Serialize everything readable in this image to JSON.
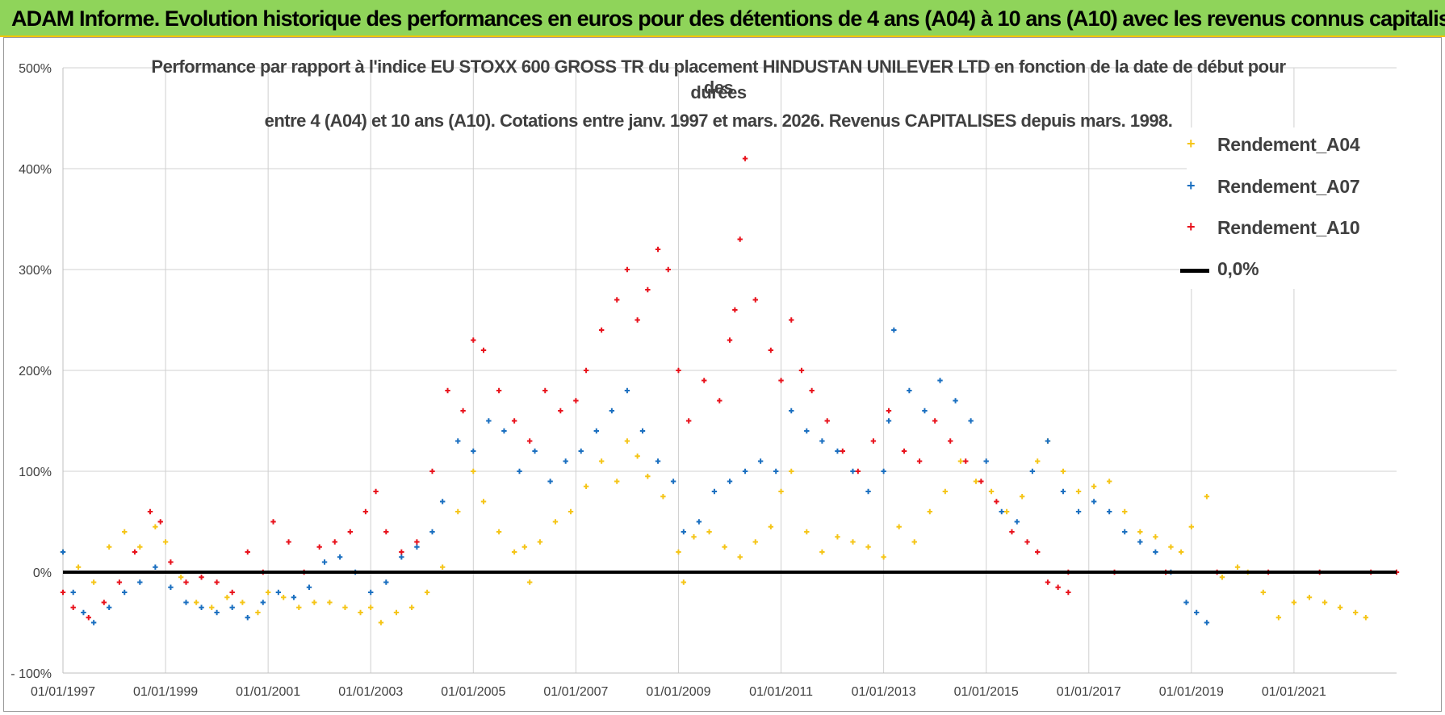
{
  "banner": {
    "title": "ADAM Informe. Evolution historique des performances en euros pour des détentions de 4 ans (A04) à 10 ans (A10) avec les revenus connus capitalisés"
  },
  "colors": {
    "banner_bg": "#8fd45a",
    "banner_border": "#f2c500",
    "a04": "#f5c518",
    "a07": "#1a6fc0",
    "a10": "#e8121c",
    "zero_line": "#000000",
    "grid": "#d0d0d0"
  },
  "chart_data": {
    "type": "scatter",
    "title_lines": [
      "Performance par rapport à l'indice EU STOXX 600 GROSS TR  du placement HINDUSTAN UNILEVER LTD en fonction de la date de début pour des",
      "durées",
      "entre 4 (A04) et 10 ans (A10).  Cotations entre janv. 1997 et mars. 2026.  Revenus CAPITALISES depuis mars. 1998."
    ],
    "xlabel": "",
    "ylabel": "",
    "x_range": [
      1997.0,
      2023.0
    ],
    "ylim": [
      -100,
      500
    ],
    "y_ticks": [
      -100,
      0,
      100,
      200,
      300,
      400,
      500
    ],
    "y_tick_labels": [
      "- 100%",
      "0%",
      "100%",
      "200%",
      "300%",
      "400%",
      "500%"
    ],
    "x_ticks": [
      1997,
      1999,
      2001,
      2003,
      2005,
      2007,
      2009,
      2011,
      2013,
      2015,
      2017,
      2019,
      2021
    ],
    "x_tick_labels": [
      "01/01/1997",
      "01/01/1999",
      "01/01/2001",
      "01/01/2003",
      "01/01/2005",
      "01/01/2007",
      "01/01/2009",
      "01/01/2011",
      "01/01/2013",
      "01/01/2015",
      "01/01/2017",
      "01/01/2019",
      "01/01/2021"
    ],
    "legend_position": "top-right",
    "series": [
      {
        "name": "Rendement_A04",
        "marker": "+",
        "color": "#f5c518",
        "x": [
          1997.0,
          1997.3,
          1997.6,
          1997.9,
          1998.2,
          1998.5,
          1998.8,
          1999.0,
          1999.3,
          1999.6,
          1999.9,
          2000.2,
          2000.5,
          2000.8,
          2001.0,
          2001.3,
          2001.6,
          2001.9,
          2002.2,
          2002.5,
          2002.8,
          2003.0,
          2003.2,
          2003.5,
          2003.8,
          2004.1,
          2004.4,
          2004.7,
          2005.0,
          2005.2,
          2005.5,
          2005.8,
          2006.0,
          2006.1,
          2006.3,
          2006.6,
          2006.9,
          2007.2,
          2007.5,
          2007.8,
          2008.0,
          2008.2,
          2008.4,
          2008.7,
          2009.0,
          2009.1,
          2009.3,
          2009.6,
          2009.9,
          2010.2,
          2010.5,
          2010.8,
          2011.0,
          2011.2,
          2011.5,
          2011.8,
          2012.1,
          2012.4,
          2012.7,
          2013.0,
          2013.3,
          2013.6,
          2013.9,
          2014.2,
          2014.5,
          2014.8,
          2015.1,
          2015.4,
          2015.7,
          2016.0,
          2016.2,
          2016.5,
          2016.8,
          2017.1,
          2017.4,
          2017.7,
          2018.0,
          2018.3,
          2018.6,
          2018.8,
          2019.0,
          2019.3,
          2019.6,
          2019.9,
          2020.1,
          2020.4,
          2020.7,
          2021.0,
          2021.3,
          2021.6,
          2021.9,
          2022.2,
          2022.4
        ],
        "y": [
          20,
          5,
          -10,
          25,
          40,
          25,
          45,
          30,
          -5,
          -30,
          -35,
          -25,
          -30,
          -40,
          -20,
          -25,
          -35,
          -30,
          -30,
          -35,
          -40,
          -35,
          -50,
          -40,
          -35,
          -20,
          5,
          60,
          100,
          70,
          40,
          20,
          25,
          -10,
          30,
          50,
          60,
          85,
          110,
          90,
          130,
          115,
          95,
          75,
          20,
          -10,
          35,
          40,
          25,
          15,
          30,
          45,
          80,
          100,
          40,
          20,
          35,
          30,
          25,
          15,
          45,
          30,
          60,
          80,
          110,
          90,
          80,
          60,
          75,
          110,
          130,
          100,
          80,
          85,
          90,
          60,
          40,
          35,
          25,
          20,
          45,
          75,
          -5,
          5,
          0,
          -20,
          -45,
          -30,
          -25,
          -30,
          -35,
          -40,
          -45
        ]
      },
      {
        "name": "Rendement_A07",
        "marker": "+",
        "color": "#1a6fc0",
        "x": [
          1997.0,
          1997.2,
          1997.4,
          1997.6,
          1997.9,
          1998.2,
          1998.5,
          1998.8,
          1999.1,
          1999.4,
          1999.7,
          2000.0,
          2000.3,
          2000.6,
          2000.9,
          2001.2,
          2001.5,
          2001.8,
          2002.1,
          2002.4,
          2002.7,
          2003.0,
          2003.3,
          2003.6,
          2003.9,
          2004.2,
          2004.4,
          2004.7,
          2005.0,
          2005.3,
          2005.6,
          2005.9,
          2006.2,
          2006.5,
          2006.8,
          2007.1,
          2007.4,
          2007.7,
          2008.0,
          2008.3,
          2008.6,
          2008.9,
          2009.1,
          2009.4,
          2009.7,
          2010.0,
          2010.3,
          2010.6,
          2010.9,
          2011.2,
          2011.5,
          2011.8,
          2012.1,
          2012.4,
          2012.7,
          2013.0,
          2013.1,
          2013.2,
          2013.5,
          2013.8,
          2014.1,
          2014.4,
          2014.7,
          2015.0,
          2015.3,
          2015.6,
          2015.9,
          2016.2,
          2016.5,
          2016.8,
          2017.1,
          2017.4,
          2017.7,
          2018.0,
          2018.3,
          2018.6,
          2018.9,
          2019.1,
          2019.3
        ],
        "y": [
          20,
          -20,
          -40,
          -50,
          -35,
          -20,
          -10,
          5,
          -15,
          -30,
          -35,
          -40,
          -35,
          -45,
          -30,
          -20,
          -25,
          -15,
          10,
          15,
          0,
          -20,
          -10,
          15,
          25,
          40,
          70,
          130,
          120,
          150,
          140,
          100,
          120,
          90,
          110,
          120,
          140,
          160,
          180,
          140,
          110,
          90,
          40,
          50,
          80,
          90,
          100,
          110,
          100,
          160,
          140,
          130,
          120,
          100,
          80,
          100,
          150,
          240,
          180,
          160,
          190,
          170,
          150,
          110,
          60,
          50,
          100,
          130,
          80,
          60,
          70,
          60,
          40,
          30,
          20,
          0,
          -30,
          -40,
          -50
        ]
      },
      {
        "name": "Rendement_A10",
        "marker": "+",
        "color": "#e8121c",
        "x": [
          1997.0,
          1997.2,
          1997.5,
          1997.8,
          1998.1,
          1998.4,
          1998.7,
          1998.9,
          1999.1,
          1999.4,
          1999.7,
          2000.0,
          2000.3,
          2000.6,
          2000.9,
          2001.1,
          2001.4,
          2001.7,
          2002.0,
          2002.3,
          2002.6,
          2002.9,
          2003.1,
          2003.3,
          2003.6,
          2003.9,
          2004.2,
          2004.5,
          2004.8,
          2005.0,
          2005.2,
          2005.5,
          2005.8,
          2006.1,
          2006.4,
          2006.7,
          2007.0,
          2007.2,
          2007.5,
          2007.8,
          2008.0,
          2008.2,
          2008.4,
          2008.6,
          2008.8,
          2009.0,
          2009.2,
          2009.5,
          2009.8,
          2010.0,
          2010.1,
          2010.2,
          2010.3,
          2010.5,
          2010.8,
          2011.0,
          2011.2,
          2011.4,
          2011.6,
          2011.9,
          2012.2,
          2012.5,
          2012.8,
          2013.1,
          2013.4,
          2013.7,
          2014.0,
          2014.3,
          2014.6,
          2014.9,
          2015.2,
          2015.5,
          2015.8,
          2016.0,
          2016.2,
          2016.4,
          2016.6,
          2016.6,
          2017.5,
          2018.5,
          2019.5,
          2020.5,
          2021.5,
          2022.5,
          2023.0
        ],
        "y": [
          -20,
          -35,
          -45,
          -30,
          -10,
          20,
          60,
          50,
          10,
          -10,
          -5,
          -10,
          -20,
          20,
          0,
          50,
          30,
          0,
          25,
          30,
          40,
          60,
          80,
          40,
          20,
          30,
          100,
          180,
          160,
          230,
          220,
          180,
          150,
          130,
          180,
          160,
          170,
          200,
          240,
          270,
          300,
          250,
          280,
          320,
          300,
          200,
          150,
          190,
          170,
          230,
          260,
          330,
          410,
          270,
          220,
          190,
          250,
          200,
          180,
          150,
          120,
          100,
          130,
          160,
          120,
          110,
          150,
          130,
          110,
          90,
          70,
          40,
          30,
          20,
          -10,
          -15,
          -20,
          0,
          0,
          0,
          0,
          0,
          0,
          0,
          0
        ]
      },
      {
        "name": "0,0%",
        "marker": "line",
        "color": "#000000",
        "x": [
          1997.0,
          2023.0
        ],
        "y": [
          0,
          0
        ]
      }
    ]
  }
}
